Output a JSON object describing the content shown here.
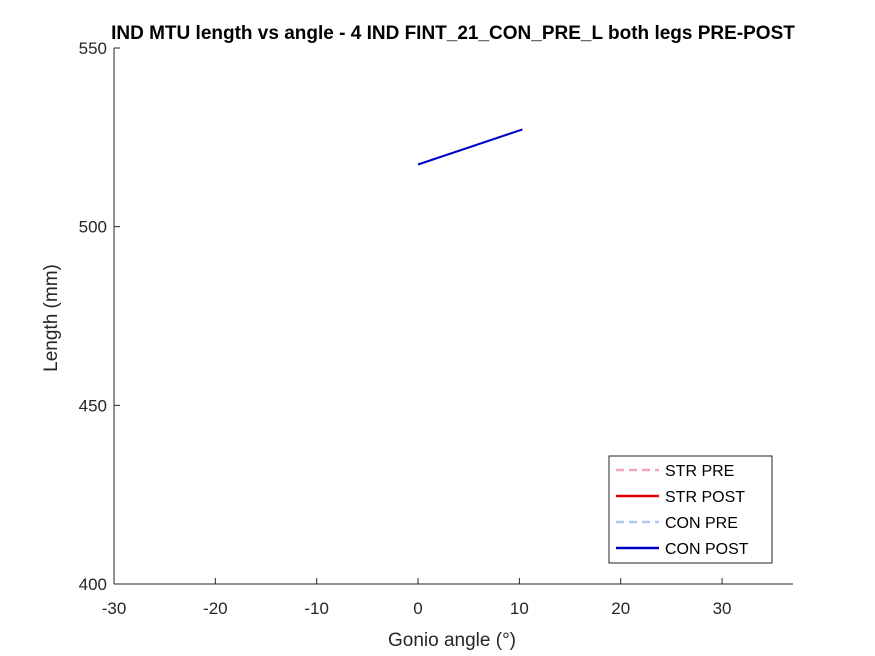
{
  "chart_data": {
    "type": "line",
    "title": "IND MTU length vs angle - 4 IND FINT_21_CON_PRE_L both legs PRE-POST",
    "xlabel": "Gonio angle (°)",
    "ylabel": "Length (mm)",
    "xlim": [
      -30,
      37
    ],
    "ylim": [
      400,
      550
    ],
    "xticks": [
      -30,
      -20,
      -10,
      0,
      10,
      20,
      30
    ],
    "yticks": [
      400,
      450,
      500,
      550
    ],
    "grid": false,
    "legend_position": "bottom-right",
    "series": [
      {
        "name": "STR PRE",
        "color": "#f4a6c0",
        "style": "dashed",
        "x": [],
        "y": []
      },
      {
        "name": "STR POST",
        "color": "#e60000",
        "style": "solid",
        "x": [],
        "y": []
      },
      {
        "name": "CON PRE",
        "color": "#a9c9ef",
        "style": "dashed",
        "x": [
          0,
          10.3
        ],
        "y": [
          517.4,
          527.2
        ]
      },
      {
        "name": "CON POST",
        "color": "#0000cc",
        "style": "solid",
        "x": [
          0,
          10.3
        ],
        "y": [
          517.4,
          527.2
        ]
      }
    ]
  }
}
